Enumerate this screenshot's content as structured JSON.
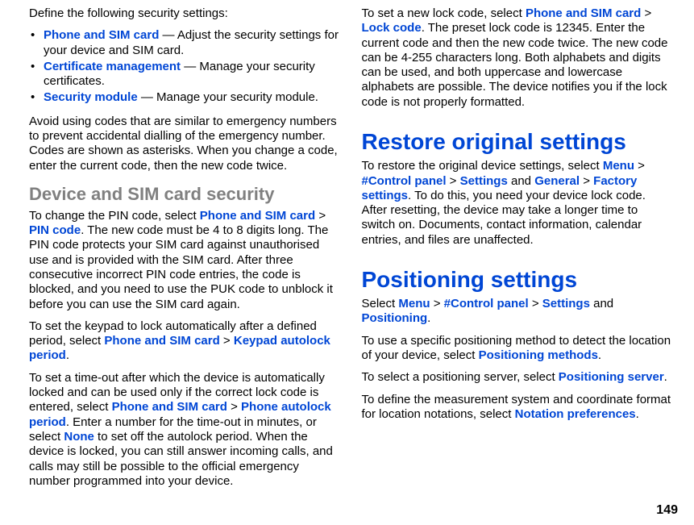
{
  "left": {
    "intro": "Define the following security settings:",
    "bullets": [
      {
        "term": "Phone and SIM card",
        "desc": " — Adjust the security settings for your device and SIM card."
      },
      {
        "term": "Certificate management",
        "desc": " — Manage your security certificates."
      },
      {
        "term": "Security module",
        "desc": " — Manage your security module."
      }
    ],
    "p_avoid": "Avoid using codes that are similar to emergency numbers to prevent accidental dialling of the emergency number. Codes are shown as asterisks. When you change a code, enter the current code, then the new code twice.",
    "h_device": "Device and SIM card security",
    "p_pin_a": "To change the PIN code, select ",
    "p_pin_link1": "Phone and SIM card",
    "p_pin_chev1": " > ",
    "p_pin_link2": "PIN code",
    "p_pin_b": ". The new code must be 4 to 8 digits long. The PIN code protects your SIM card against unauthorised use and is provided with the SIM card. After three consecutive incorrect PIN code entries, the code is blocked, and you need to use the PUK code to unblock it before you can use the SIM card again.",
    "p_keypad_a": "To set the keypad to lock automatically after a defined period, select ",
    "p_keypad_link1": "Phone and SIM card",
    "p_keypad_chev1": " > ",
    "p_keypad_link2": "Keypad autolock period",
    "p_keypad_b": ".",
    "p_timeout_a": "To set a time-out after which the device is automatically locked and can be used only if the correct lock code is entered, select ",
    "p_timeout_link1": "Phone and SIM card",
    "p_timeout_chev1": " > ",
    "p_timeout_link2": "Phone autolock period",
    "p_timeout_b": ". Enter a number for the time-out in minutes, or select ",
    "p_timeout_link3": "None",
    "p_timeout_c": " to set off the autolock period. When the device is locked, you can still answer incoming calls, and calls may still be possible to the official emergency number programmed into your device."
  },
  "right": {
    "p_lock_a": "To set a new lock code, select ",
    "p_lock_link1": "Phone and SIM card",
    "p_lock_chev1": " > ",
    "p_lock_link2": "Lock code",
    "p_lock_b": ". The preset lock code is 12345. Enter the current code and then the new code twice. The new code can be 4-255 characters long. Both alphabets and digits can be used, and both uppercase and lowercase alphabets are possible. The device notifies you if the lock code is not properly formatted.",
    "h_restore": "Restore original settings",
    "p_restore_a": "To restore the original device settings, select ",
    "p_restore_link1": "Menu",
    "p_restore_chev1": " > ",
    "p_restore_link2": "#Control panel",
    "p_restore_chev2": " > ",
    "p_restore_link3": "Settings",
    "p_restore_mid": " and ",
    "p_restore_link4": "General",
    "p_restore_chev3": " > ",
    "p_restore_link5": "Factory settings",
    "p_restore_b": ". To do this, you need your device lock code. After resetting, the device may take a longer time to switch on. Documents, contact information, calendar entries, and files are unaffected.",
    "h_pos": "Positioning settings",
    "p_pos_sel_a": "Select ",
    "p_pos_link1": "Menu",
    "p_pos_chev1": " > ",
    "p_pos_link2": "#Control panel",
    "p_pos_chev2": " > ",
    "p_pos_link3": "Settings",
    "p_pos_mid": " and ",
    "p_pos_link4": "Positioning",
    "p_pos_sel_b": ".",
    "p_posmethod_a": "To use a specific positioning method to detect the location of your device, select ",
    "p_posmethod_link": "Positioning methods",
    "p_posmethod_b": ".",
    "p_posserver_a": "To select a positioning server, select ",
    "p_posserver_link": "Positioning server",
    "p_posserver_b": ".",
    "p_notation_a": "To define the measurement system and coordinate format for location notations, select ",
    "p_notation_link": "Notation preferences",
    "p_notation_b": ".",
    "pagenum": "149"
  }
}
